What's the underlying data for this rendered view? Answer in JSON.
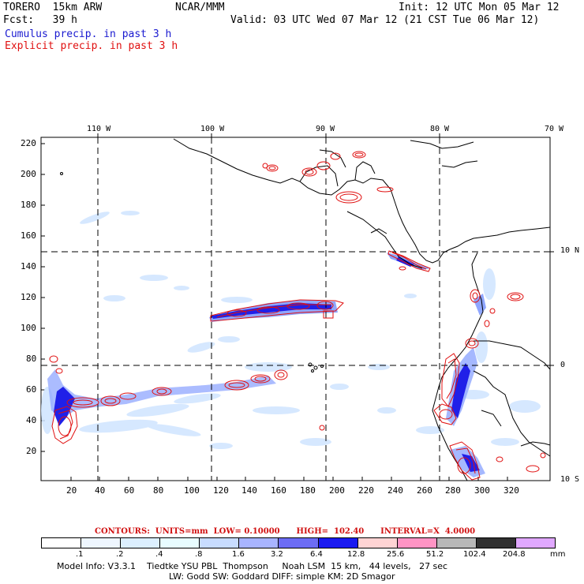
{
  "header": {
    "model": "TORERO  15km ARW",
    "org": "NCAR/MMM",
    "init": "Init: 12 UTC Mon 05 Mar 12",
    "fcst": "Fcst:   39 h",
    "valid": "Valid: 03 UTC Wed 07 Mar 12 (21 CST Tue 06 Mar 12)",
    "field1": "Cumulus precip. in past 3 h",
    "field2": "Explicit precip. in past 3 h"
  },
  "axes": {
    "top_lon_labels": [
      "110 W",
      "100 W",
      "90 W",
      "80 W",
      "70 W"
    ],
    "right_lat_labels": [
      "10 N",
      "0",
      "10 S"
    ],
    "y_ticks": [
      "220",
      "200",
      "180",
      "160",
      "140",
      "120",
      "100",
      "80",
      "60",
      "40",
      "20"
    ],
    "x_ticks": [
      "20",
      "40",
      "60",
      "80",
      "100",
      "120",
      "140",
      "160",
      "180",
      "200",
      "220",
      "240",
      "260",
      "280",
      "300",
      "320"
    ]
  },
  "contours_label": "CONTOURS:  UNITS=mm  LOW= 0.10000      HIGH=  102.40      INTERVAL=X  4.0000",
  "legend": {
    "values": [
      ".1",
      ".2",
      ".4",
      ".8",
      "1.6",
      "3.2",
      "6.4",
      "12.8",
      "25.6",
      "51.2",
      "102.4",
      "204.8"
    ],
    "unit": "mm",
    "colors": [
      "#ffffff",
      "#eef6ff",
      "#dcefff",
      "#e8fcff",
      "#c8dcff",
      "#a8b4ff",
      "#6c6cf4",
      "#1a1af0",
      "#ffd4d4",
      "#ff94c4",
      "#b8b8b8",
      "#303030",
      "#e0a8ff"
    ]
  },
  "model_info": {
    "line1": "Model Info: V3.3.1    Tiedtke YSU PBL  Thompson     Noah LSM  15 km,   44 levels,   27 sec",
    "line2": "LW: Godd SW: Goddard DIFF: simple KM: 2D Smagor"
  }
}
